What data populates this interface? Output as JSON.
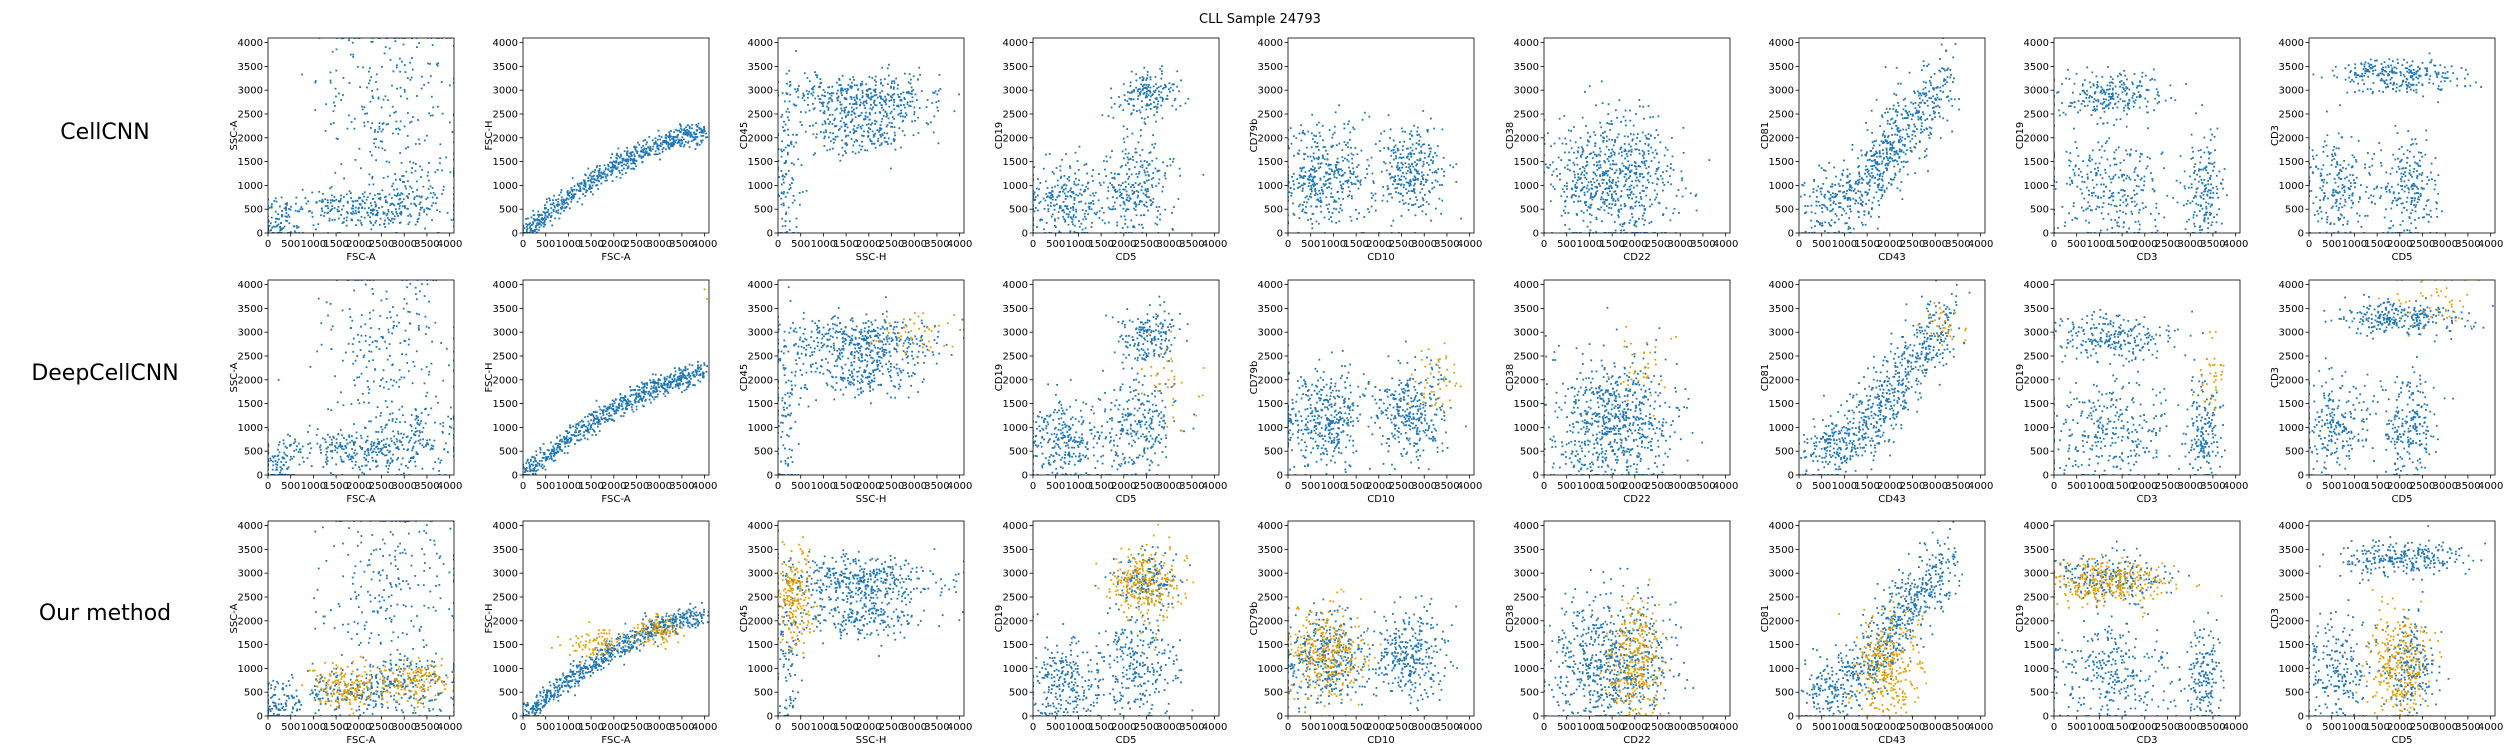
{
  "figure": {
    "title": "CLL Sample 24793",
    "rows": [
      "CellCNN",
      "DeepCellCNN",
      "Our method"
    ]
  },
  "colors": {
    "population": "#1f77b4",
    "selected": "#e69f00",
    "axes": "#000000"
  },
  "chart_data": {
    "type": "scatter",
    "title": "CLL Sample 24793",
    "xlim": [
      0,
      4096
    ],
    "ylim": [
      0,
      4096
    ],
    "ticks": [
      0,
      500,
      1000,
      1500,
      2000,
      2500,
      3000,
      3500,
      4000
    ],
    "grid": false,
    "series": [
      {
        "name": "",
        "role": "all cells",
        "color": "#1f77b4"
      },
      {
        "name": "",
        "role": "selected cells",
        "color": "#e69f00"
      }
    ],
    "panels": [
      {
        "x": "FSC-A",
        "y": "SSC-A",
        "clusters": [
          {
            "cx": 1900,
            "cy": 500,
            "sx": 650,
            "sy": 220,
            "w": 1.0
          },
          {
            "cx": 3200,
            "cy": 700,
            "sx": 600,
            "sy": 350,
            "w": 0.8
          },
          {
            "cx": 2700,
            "cy": 2700,
            "sx": 800,
            "sy": 1000,
            "w": 1.2
          },
          {
            "cx": 250,
            "cy": 250,
            "sx": 250,
            "sy": 250,
            "w": 0.5
          }
        ]
      },
      {
        "x": "FSC-A",
        "y": "FSC-H",
        "curve": [
          [
            0,
            0
          ],
          [
            1000,
            750
          ],
          [
            2000,
            1380
          ],
          [
            3000,
            1880
          ],
          [
            4000,
            2150
          ]
        ],
        "spread": 120
      },
      {
        "x": "SSC-H",
        "y": "CD45",
        "clusters": [
          {
            "cx": 1800,
            "cy": 2850,
            "sx": 900,
            "sy": 250,
            "w": 1.5
          },
          {
            "cx": 1800,
            "cy": 2100,
            "sx": 700,
            "sy": 250,
            "w": 0.8
          },
          {
            "cx": 200,
            "cy": 1200,
            "sx": 150,
            "sy": 1000,
            "w": 0.4
          }
        ]
      },
      {
        "x": "CD5",
        "y": "CD19",
        "clusters": [
          {
            "cx": 700,
            "cy": 700,
            "sx": 450,
            "sy": 450,
            "w": 1.2
          },
          {
            "cx": 2300,
            "cy": 1000,
            "sx": 400,
            "sy": 550,
            "w": 1.2
          },
          {
            "cx": 2500,
            "cy": 2900,
            "sx": 350,
            "sy": 280,
            "w": 0.8
          }
        ]
      },
      {
        "x": "CD10",
        "y": "CD79b",
        "clusters": [
          {
            "cx": 800,
            "cy": 1200,
            "sx": 500,
            "sy": 500,
            "w": 1.3
          },
          {
            "cx": 2700,
            "cy": 1300,
            "sx": 400,
            "sy": 500,
            "w": 1.0
          }
        ]
      },
      {
        "x": "CD22",
        "y": "CD38",
        "clusters": [
          {
            "cx": 1500,
            "cy": 1100,
            "sx": 700,
            "sy": 700,
            "w": 2.0
          }
        ]
      },
      {
        "x": "CD43",
        "y": "CD81",
        "curve": [
          [
            300,
            400
          ],
          [
            1500,
            1000
          ],
          [
            2200,
            2000
          ],
          [
            3300,
            3300
          ]
        ],
        "spread": 380
      },
      {
        "x": "CD3",
        "y": "CD19",
        "clusters": [
          {
            "cx": 1300,
            "cy": 2900,
            "sx": 600,
            "sy": 250,
            "w": 1.0
          },
          {
            "cx": 1200,
            "cy": 900,
            "sx": 700,
            "sy": 550,
            "w": 1.3
          },
          {
            "cx": 3300,
            "cy": 900,
            "sx": 180,
            "sy": 550,
            "w": 0.7
          }
        ]
      },
      {
        "x": "CD5",
        "y": "CD3",
        "clusters": [
          {
            "cx": 2000,
            "cy": 3300,
            "sx": 700,
            "sy": 180,
            "w": 1.2
          },
          {
            "cx": 600,
            "cy": 1000,
            "sx": 400,
            "sy": 550,
            "w": 1.0
          },
          {
            "cx": 2200,
            "cy": 1000,
            "sx": 300,
            "sy": 550,
            "w": 1.0
          }
        ]
      }
    ],
    "selected_cells": [
      [
        {
          "panel": 0,
          "points": []
        },
        {
          "panel": 1,
          "points": []
        },
        {
          "panel": 2,
          "points": []
        },
        {
          "panel": 3,
          "points": []
        },
        {
          "panel": 4,
          "points": []
        },
        {
          "panel": 5,
          "points": []
        },
        {
          "panel": 6,
          "points": []
        },
        {
          "panel": 7,
          "points": []
        },
        {
          "panel": 8,
          "points": []
        }
      ],
      [
        {
          "panel": 0,
          "points": []
        },
        {
          "panel": 1,
          "points": [
            [
              4000,
              3900
            ],
            [
              4050,
              3700
            ]
          ]
        },
        {
          "panel": 2,
          "cluster": {
            "cx": 3100,
            "cy": 3000,
            "sx": 500,
            "sy": 200,
            "n": 45
          }
        },
        {
          "panel": 3,
          "cluster": {
            "cx": 2900,
            "cy": 2000,
            "sx": 300,
            "sy": 500,
            "n": 35
          }
        },
        {
          "panel": 4,
          "cluster": {
            "cx": 3200,
            "cy": 2000,
            "sx": 220,
            "sy": 400,
            "n": 45
          }
        },
        {
          "panel": 5,
          "cluster": {
            "cx": 2100,
            "cy": 2200,
            "sx": 350,
            "sy": 450,
            "n": 35
          }
        },
        {
          "panel": 6,
          "cluster": {
            "cx": 3200,
            "cy": 3100,
            "sx": 200,
            "sy": 200,
            "n": 30
          }
        },
        {
          "panel": 7,
          "cluster": {
            "cx": 3500,
            "cy": 2100,
            "sx": 180,
            "sy": 400,
            "n": 35
          }
        },
        {
          "panel": 8,
          "cluster": {
            "cx": 2800,
            "cy": 3600,
            "sx": 450,
            "sy": 300,
            "n": 50
          }
        }
      ],
      [
        {
          "panel": 0,
          "clusters": [
            {
              "cx": 1700,
              "cy": 600,
              "sx": 350,
              "sy": 220,
              "n": 160
            },
            {
              "cx": 3200,
              "cy": 700,
              "sx": 450,
              "sy": 230,
              "n": 160
            }
          ]
        },
        {
          "panel": 1,
          "clusters": [
            {
              "cx": 1600,
              "cy": 1500,
              "sx": 350,
              "sy": 150,
              "n": 90
            },
            {
              "cx": 3000,
              "cy": 1800,
              "sx": 300,
              "sy": 150,
              "n": 100
            }
          ]
        },
        {
          "panel": 2,
          "cluster": {
            "cx": 350,
            "cy": 2500,
            "sx": 200,
            "sy": 450,
            "n": 200
          }
        },
        {
          "panel": 3,
          "cluster": {
            "cx": 2500,
            "cy": 2800,
            "sx": 400,
            "sy": 350,
            "n": 280
          }
        },
        {
          "panel": 4,
          "cluster": {
            "cx": 900,
            "cy": 1300,
            "sx": 450,
            "sy": 500,
            "n": 300
          }
        },
        {
          "panel": 5,
          "cluster": {
            "cx": 2000,
            "cy": 1100,
            "sx": 300,
            "sy": 600,
            "n": 300
          }
        },
        {
          "panel": 6,
          "cluster": {
            "cx": 1900,
            "cy": 1000,
            "sx": 350,
            "sy": 600,
            "n": 300
          }
        },
        {
          "panel": 7,
          "cluster": {
            "cx": 1200,
            "cy": 2800,
            "sx": 650,
            "sy": 250,
            "n": 300
          }
        },
        {
          "panel": 8,
          "cluster": {
            "cx": 2000,
            "cy": 1100,
            "sx": 350,
            "sy": 600,
            "n": 300
          }
        }
      ]
    ]
  }
}
